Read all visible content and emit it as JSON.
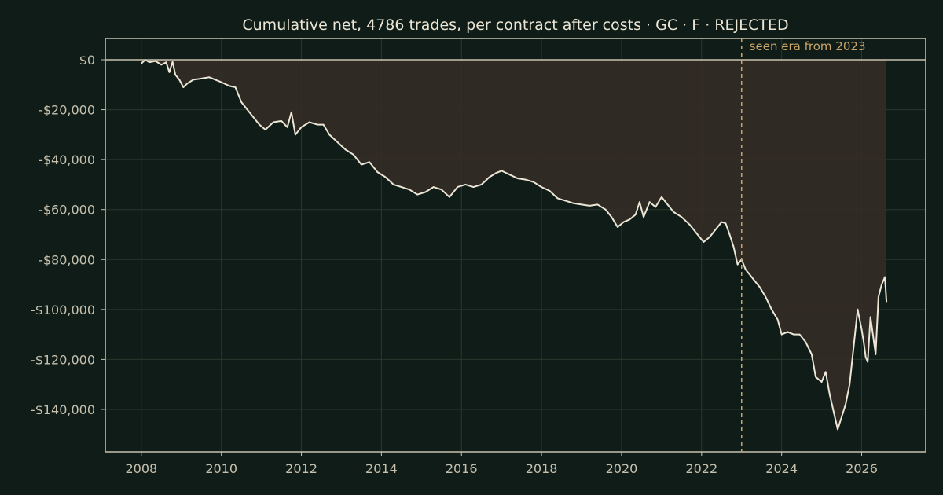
{
  "chart_data": {
    "type": "area",
    "title": "Cumulative net, 4786 trades, per contract after costs  ·  GC · F · REJECTED",
    "xlabel": "",
    "ylabel": "",
    "x_ticks": [
      2008,
      2010,
      2012,
      2014,
      2016,
      2018,
      2020,
      2022,
      2024,
      2026
    ],
    "x_tick_labels": [
      "2008",
      "2010",
      "2012",
      "2014",
      "2016",
      "2018",
      "2020",
      "2022",
      "2024",
      "2026"
    ],
    "y_ticks": [
      0,
      -20000,
      -40000,
      -60000,
      -80000,
      -100000,
      -120000,
      -140000
    ],
    "y_tick_labels": [
      "$0",
      "-$20,000",
      "-$40,000",
      "-$60,000",
      "-$80,000",
      "-$100,000",
      "-$120,000",
      "-$140,000"
    ],
    "xlim": [
      2007.1,
      2027.6
    ],
    "ylim": [
      -157000,
      8500
    ],
    "grid": true,
    "zero_line": true,
    "colors": {
      "background": "#0f1c17",
      "line": "#ece6d6",
      "fill": "#342c26",
      "grid": "#2a3830",
      "axis": "#c8c1ae",
      "marker": "#c8a46a"
    },
    "annotation": {
      "x": 2023.0,
      "label": "seen era from 2023"
    },
    "series": [
      {
        "x": [
          2008.0,
          2008.1,
          2008.2,
          2008.35,
          2008.5,
          2008.62,
          2008.7,
          2008.78,
          2008.85,
          2008.95,
          2009.05,
          2009.15,
          2009.3,
          2009.5,
          2009.7,
          2009.85,
          2010.0,
          2010.2,
          2010.35,
          2010.5,
          2010.65,
          2010.8,
          2010.95,
          2011.1,
          2011.3,
          2011.5,
          2011.65,
          2011.75,
          2011.85,
          2012.0,
          2012.2,
          2012.4,
          2012.55,
          2012.7,
          2012.9,
          2013.1,
          2013.3,
          2013.5,
          2013.7,
          2013.9,
          2014.1,
          2014.3,
          2014.5,
          2014.7,
          2014.9,
          2015.1,
          2015.3,
          2015.5,
          2015.7,
          2015.9,
          2016.1,
          2016.3,
          2016.5,
          2016.7,
          2016.85,
          2017.0,
          2017.2,
          2017.4,
          2017.6,
          2017.8,
          2018.0,
          2018.2,
          2018.4,
          2018.6,
          2018.8,
          2019.0,
          2019.2,
          2019.4,
          2019.6,
          2019.75,
          2019.9,
          2020.05,
          2020.2,
          2020.35,
          2020.45,
          2020.55,
          2020.7,
          2020.85,
          2021.0,
          2021.15,
          2021.3,
          2021.5,
          2021.7,
          2021.9,
          2022.05,
          2022.2,
          2022.35,
          2022.5,
          2022.6,
          2022.7,
          2022.8,
          2022.9,
          2023.0,
          2023.1,
          2023.2,
          2023.3,
          2023.45,
          2023.6,
          2023.75,
          2023.9,
          2024.0,
          2024.15,
          2024.3,
          2024.45,
          2024.6,
          2024.75,
          2024.85,
          2025.0,
          2025.1,
          2025.2,
          2025.3,
          2025.4,
          2025.5,
          2025.6,
          2025.7,
          2025.8,
          2025.9,
          2026.0,
          2026.05,
          2026.1,
          2026.15,
          2026.22,
          2026.28,
          2026.35,
          2026.42,
          2026.5,
          2026.58,
          2026.62
        ],
        "y": [
          -1500,
          0,
          -1000,
          -500,
          -2000,
          -1000,
          -5000,
          -800,
          -6000,
          -8000,
          -11000,
          -9500,
          -8000,
          -7500,
          -7000,
          -8000,
          -9000,
          -10500,
          -11000,
          -17000,
          -20000,
          -23000,
          -26000,
          -28000,
          -25000,
          -24500,
          -27000,
          -21000,
          -30000,
          -27000,
          -25000,
          -26000,
          -26000,
          -30000,
          -33000,
          -36000,
          -38000,
          -42000,
          -41000,
          -45000,
          -47000,
          -50000,
          -51000,
          -52000,
          -54000,
          -53000,
          -51000,
          -52000,
          -55000,
          -51000,
          -50000,
          -51000,
          -50000,
          -47000,
          -45500,
          -44500,
          -46000,
          -47500,
          -48000,
          -49000,
          -51000,
          -52500,
          -55500,
          -56500,
          -57500,
          -58000,
          -58500,
          -58000,
          -60000,
          -63000,
          -67000,
          -65000,
          -64000,
          -62000,
          -57000,
          -63000,
          -57000,
          -59000,
          -55000,
          -58000,
          -61000,
          -63000,
          -66000,
          -70000,
          -73000,
          -71000,
          -68000,
          -65000,
          -65500,
          -70000,
          -75000,
          -82000,
          -80000,
          -84000,
          -86000,
          -88000,
          -91000,
          -95000,
          -100000,
          -104000,
          -110000,
          -109000,
          -110000,
          -110000,
          -113000,
          -118000,
          -127000,
          -129000,
          -125000,
          -134000,
          -141000,
          -148000,
          -143000,
          -138000,
          -130000,
          -115000,
          -100000,
          -108000,
          -113000,
          -119000,
          -121000,
          -103000,
          -110000,
          -118000,
          -95000,
          -90000,
          -87000,
          -97000
        ]
      }
    ]
  }
}
